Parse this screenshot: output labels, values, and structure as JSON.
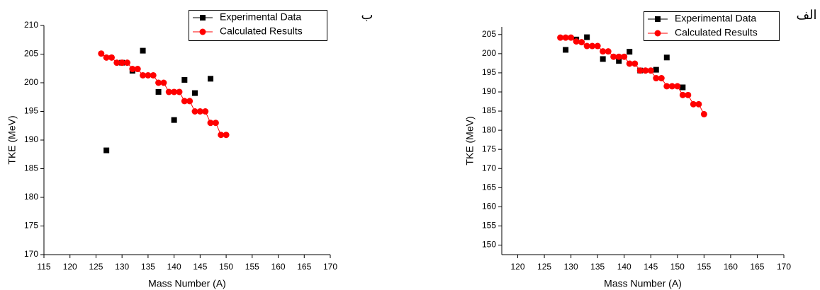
{
  "chart_data": [
    {
      "type": "scatter",
      "annotation": "ب",
      "xlabel": "Mass Number (A)",
      "ylabel": "TKE (MeV)",
      "xlim": [
        115,
        170
      ],
      "xticks": [
        115,
        120,
        125,
        130,
        135,
        140,
        145,
        150,
        155,
        160,
        165,
        170
      ],
      "ylim": [
        170,
        210
      ],
      "yticks": [
        170,
        175,
        180,
        185,
        190,
        195,
        200,
        205,
        210
      ],
      "legend": "top-right",
      "series": [
        {
          "name": "Experimental Data",
          "color": "#000000",
          "marker": "square",
          "connect": false,
          "x": [
            127,
            130,
            132,
            134,
            137,
            140,
            142,
            144,
            147
          ],
          "values": [
            188.2,
            203.5,
            202.1,
            205.6,
            198.4,
            193.5,
            200.5,
            198.2,
            200.7
          ]
        },
        {
          "name": "Calculated Results",
          "color": "#ff0000",
          "marker": "circle",
          "connect": true,
          "x": [
            126,
            127,
            128,
            129,
            130,
            131,
            132,
            133,
            134,
            135,
            136,
            137,
            138,
            139,
            140,
            141,
            142,
            143,
            144,
            145,
            146,
            147,
            148,
            149,
            150
          ],
          "values": [
            205.1,
            204.4,
            204.4,
            203.5,
            203.5,
            203.5,
            202.4,
            202.4,
            201.3,
            201.3,
            201.3,
            200,
            200,
            198.4,
            198.4,
            198.4,
            196.8,
            196.8,
            195,
            195,
            195,
            193,
            193,
            190.9,
            190.9
          ]
        }
      ]
    },
    {
      "type": "scatter",
      "annotation": "الف",
      "xlabel": "Mass Number (A)",
      "ylabel": "TKE (MeV)",
      "xlim": [
        117,
        170
      ],
      "xticks": [
        120,
        125,
        130,
        135,
        140,
        145,
        150,
        155,
        160,
        165,
        170
      ],
      "ylim": [
        147.5,
        207
      ],
      "yticks": [
        150,
        155,
        160,
        165,
        170,
        175,
        180,
        185,
        190,
        195,
        200,
        205
      ],
      "legend": "top-right",
      "series": [
        {
          "name": "Experimental Data",
          "color": "#000000",
          "marker": "square",
          "connect": false,
          "x": [
            129,
            131,
            133,
            136,
            139,
            141,
            143,
            146,
            148,
            151
          ],
          "values": [
            201,
            203.7,
            204.3,
            198.6,
            198.1,
            200.5,
            195.6,
            195.8,
            199,
            191.2
          ]
        },
        {
          "name": "Calculated Results",
          "color": "#ff0000",
          "marker": "circle",
          "connect": true,
          "x": [
            128,
            129,
            130,
            131,
            132,
            133,
            134,
            135,
            136,
            137,
            138,
            139,
            140,
            141,
            142,
            143,
            144,
            145,
            146,
            147,
            148,
            149,
            150,
            151,
            152,
            153,
            154,
            155
          ],
          "values": [
            204.2,
            204.2,
            204.2,
            203.2,
            203,
            202,
            202,
            202,
            200.6,
            200.6,
            199.2,
            199.2,
            199.2,
            197.4,
            197.4,
            195.6,
            195.6,
            195.6,
            193.6,
            193.6,
            191.5,
            191.5,
            191.5,
            189.2,
            189.2,
            186.8,
            186.8,
            184.2
          ]
        }
      ]
    }
  ]
}
